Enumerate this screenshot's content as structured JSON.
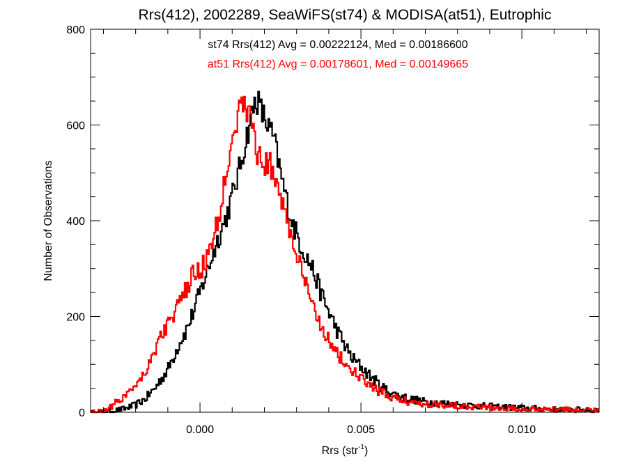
{
  "chart_data": {
    "type": "line",
    "title": "Rrs(412), 2002289, SeaWiFS(st74) & MODISA(at51), Eutrophic",
    "xlabel_main": "Rrs (str",
    "xlabel_sup": "-1",
    "xlabel_tail": ")",
    "ylabel": "Number of Observations",
    "xlim": [
      -0.0034,
      0.0124
    ],
    "ylim": [
      0,
      800
    ],
    "x_ticks": [
      0.0,
      0.005,
      0.01
    ],
    "x_tick_labels": [
      "0.000",
      "0.005",
      "0.010"
    ],
    "y_ticks": [
      0,
      200,
      400,
      600,
      800
    ],
    "y_tick_labels": [
      "0",
      "200",
      "400",
      "600",
      "800"
    ],
    "grid": false,
    "annotations": [
      {
        "text": "st74 Rrs(412) Avg = 0.00222124, Med = 0.00186600",
        "color": "#000000"
      },
      {
        "text": "at51 Rrs(412) Avg = 0.00178601, Med = 0.00149665",
        "color": "#ff0000"
      }
    ],
    "series": [
      {
        "color": "#000000",
        "points": [
          [
            -0.0034,
            0
          ],
          [
            -0.003,
            1
          ],
          [
            -0.0026,
            4
          ],
          [
            -0.0023,
            8
          ],
          [
            -0.002,
            15
          ],
          [
            -0.0017,
            28
          ],
          [
            -0.0014,
            50
          ],
          [
            -0.0012,
            70
          ],
          [
            -0.001,
            88
          ],
          [
            -0.0008,
            120
          ],
          [
            -0.0006,
            150
          ],
          [
            -0.0004,
            175
          ],
          [
            -0.0002,
            210
          ],
          [
            0.0,
            250
          ],
          [
            0.0002,
            290
          ],
          [
            0.0004,
            330
          ],
          [
            0.0006,
            370
          ],
          [
            0.0008,
            405
          ],
          [
            0.001,
            450
          ],
          [
            0.0012,
            500
          ],
          [
            0.0014,
            560
          ],
          [
            0.0016,
            620
          ],
          [
            0.00175,
            658
          ],
          [
            0.0019,
            630
          ],
          [
            0.0021,
            600
          ],
          [
            0.0023,
            570
          ],
          [
            0.0025,
            500
          ],
          [
            0.0027,
            440
          ],
          [
            0.0029,
            390
          ],
          [
            0.0031,
            355
          ],
          [
            0.0033,
            325
          ],
          [
            0.0035,
            300
          ],
          [
            0.0037,
            260
          ],
          [
            0.0039,
            225
          ],
          [
            0.0041,
            195
          ],
          [
            0.0043,
            165
          ],
          [
            0.0045,
            140
          ],
          [
            0.0047,
            115
          ],
          [
            0.005,
            95
          ],
          [
            0.0053,
            75
          ],
          [
            0.0056,
            55
          ],
          [
            0.006,
            38
          ],
          [
            0.0065,
            28
          ],
          [
            0.007,
            22
          ],
          [
            0.008,
            16
          ],
          [
            0.009,
            12
          ],
          [
            0.01,
            9
          ],
          [
            0.011,
            6
          ],
          [
            0.0124,
            5
          ]
        ]
      },
      {
        "color": "#ff0000",
        "points": [
          [
            -0.0034,
            0
          ],
          [
            -0.003,
            3
          ],
          [
            -0.0028,
            10
          ],
          [
            -0.0026,
            20
          ],
          [
            -0.0024,
            30
          ],
          [
            -0.0022,
            45
          ],
          [
            -0.002,
            60
          ],
          [
            -0.0018,
            75
          ],
          [
            -0.0016,
            100
          ],
          [
            -0.0014,
            130
          ],
          [
            -0.0012,
            160
          ],
          [
            -0.001,
            185
          ],
          [
            -0.0008,
            205
          ],
          [
            -0.0006,
            230
          ],
          [
            -0.0004,
            260
          ],
          [
            -0.0002,
            290
          ],
          [
            0.0,
            295
          ],
          [
            0.0002,
            320
          ],
          [
            0.0004,
            355
          ],
          [
            0.0006,
            410
          ],
          [
            0.0008,
            500
          ],
          [
            0.001,
            580
          ],
          [
            0.0012,
            625
          ],
          [
            0.0014,
            640
          ],
          [
            0.0015,
            630
          ],
          [
            0.0016,
            610
          ],
          [
            0.0017,
            570
          ],
          [
            0.0018,
            535
          ],
          [
            0.002,
            520
          ],
          [
            0.0022,
            515
          ],
          [
            0.0024,
            480
          ],
          [
            0.0026,
            430
          ],
          [
            0.0028,
            375
          ],
          [
            0.003,
            330
          ],
          [
            0.0032,
            285
          ],
          [
            0.0034,
            240
          ],
          [
            0.0036,
            205
          ],
          [
            0.0038,
            180
          ],
          [
            0.004,
            150
          ],
          [
            0.0042,
            130
          ],
          [
            0.0044,
            110
          ],
          [
            0.0046,
            95
          ],
          [
            0.0049,
            75
          ],
          [
            0.0052,
            60
          ],
          [
            0.0055,
            45
          ],
          [
            0.006,
            30
          ],
          [
            0.0065,
            22
          ],
          [
            0.007,
            18
          ],
          [
            0.008,
            14
          ],
          [
            0.009,
            10
          ],
          [
            0.01,
            8
          ],
          [
            0.011,
            6
          ],
          [
            0.0124,
            4
          ]
        ]
      }
    ]
  }
}
